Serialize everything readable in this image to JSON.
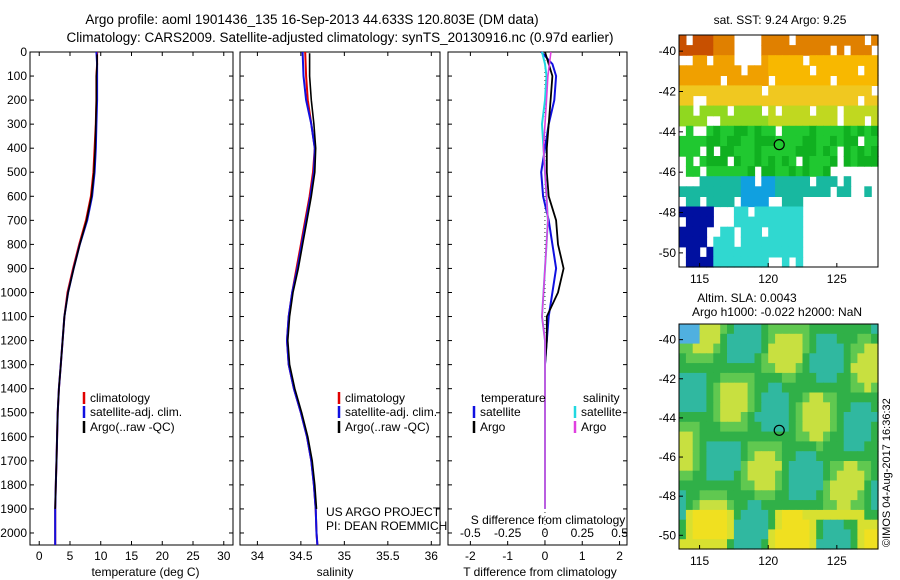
{
  "header": {
    "title_line1": "Argo profile: aoml 1901436_135 16-Sep-2013 44.633S 120.803E (DM data)",
    "title_line2": "Climatology: CARS2009. Satellite-adjusted climatology: synTS_20130916.nc (0.97d earlier)"
  },
  "credits": {
    "project": "US ARGO PROJECT",
    "pi": "PI: DEAN ROEMMICH",
    "stamp": "©IMOS 04-Aug-2017 16:36:32"
  },
  "colors": {
    "climatology": "#e00000",
    "satellite": "#1010e0",
    "argo": "#000000",
    "salinity_satellite": "#20d8e0",
    "salinity_argo": "#e040e0"
  },
  "chart_data": [
    {
      "type": "line",
      "title": "",
      "xlabel": "temperature (deg C)",
      "ylabel": "",
      "xlim": [
        -1.5,
        31.5
      ],
      "ylim": [
        2050,
        0
      ],
      "xticks": [
        "0",
        "5",
        "10",
        "15",
        "20",
        "25",
        "30"
      ],
      "yticks": [
        "0",
        "100",
        "200",
        "300",
        "400",
        "500",
        "600",
        "700",
        "800",
        "900",
        "1000",
        "1100",
        "1200",
        "1300",
        "1400",
        "1500",
        "1600",
        "1700",
        "1800",
        "1900",
        "2000"
      ],
      "legend": [
        "climatology",
        "satellite-adj. clim.",
        "Argo(..raw -QC)"
      ],
      "series": [
        {
          "name": "climatology",
          "x": [
            9.4,
            9.4,
            9.3,
            9.3,
            9.2,
            9.0,
            8.8,
            8.4,
            7.6,
            6.5,
            5.5,
            4.6,
            4.1,
            3.8,
            3.5,
            3.2,
            3.0,
            2.9,
            2.8,
            2.7,
            2.6,
            2.6
          ],
          "y": [
            0,
            50,
            100,
            200,
            300,
            400,
            500,
            600,
            700,
            800,
            900,
            1000,
            1100,
            1200,
            1300,
            1400,
            1500,
            1600,
            1700,
            1800,
            1900,
            2050
          ]
        },
        {
          "name": "satellite-adj. clim.",
          "x": [
            9.3,
            9.4,
            9.4,
            9.4,
            9.3,
            9.2,
            9.0,
            8.6,
            7.8,
            6.6,
            5.6,
            4.7,
            4.1,
            3.8,
            3.5,
            3.2,
            3.0,
            2.9,
            2.8,
            2.7,
            2.6,
            2.6
          ],
          "y": [
            0,
            50,
            100,
            200,
            300,
            400,
            500,
            600,
            700,
            800,
            900,
            1000,
            1100,
            1200,
            1300,
            1400,
            1500,
            1600,
            1700,
            1800,
            1900,
            2050
          ]
        },
        {
          "name": "Argo(..raw -QC)",
          "x": [
            9.4,
            9.4,
            9.3,
            9.3,
            9.2,
            9.1,
            8.9,
            8.5,
            7.7,
            6.6,
            5.6,
            4.7,
            4.1,
            3.8,
            3.5,
            3.2,
            3.0,
            2.9,
            2.8,
            2.7,
            2.6
          ],
          "y": [
            10,
            50,
            100,
            200,
            300,
            400,
            500,
            600,
            700,
            800,
            900,
            1000,
            1100,
            1200,
            1300,
            1400,
            1500,
            1600,
            1700,
            1800,
            1900
          ]
        }
      ]
    },
    {
      "type": "line",
      "xlabel": "salinity",
      "xlim": [
        33.8,
        36.1
      ],
      "ylim": [
        2050,
        0
      ],
      "xticks": [
        "34",
        "34.5",
        "35",
        "35.5",
        "36"
      ],
      "legend": [
        "climatology",
        "satellite-adj. clim.",
        "Argo(..raw -QC)"
      ],
      "series": [
        {
          "name": "climatology",
          "x": [
            34.55,
            34.56,
            34.58,
            34.62,
            34.66,
            34.64,
            34.6,
            34.55,
            34.5,
            34.45,
            34.4,
            34.36,
            34.34,
            34.36,
            34.42,
            34.5,
            34.57,
            34.62,
            34.65,
            34.67,
            34.68,
            34.69
          ],
          "y": [
            0,
            100,
            200,
            300,
            400,
            500,
            600,
            700,
            800,
            900,
            1000,
            1100,
            1200,
            1300,
            1400,
            1500,
            1600,
            1700,
            1800,
            1900,
            2000,
            2050
          ]
        },
        {
          "name": "satellite-adj. clim.",
          "x": [
            34.52,
            34.53,
            34.56,
            34.62,
            34.66,
            34.65,
            34.61,
            34.56,
            34.51,
            34.46,
            34.4,
            34.36,
            34.34,
            34.36,
            34.42,
            34.5,
            34.57,
            34.62,
            34.65,
            34.67,
            34.68,
            34.69
          ],
          "y": [
            0,
            100,
            200,
            300,
            400,
            500,
            600,
            700,
            800,
            900,
            1000,
            1100,
            1200,
            1300,
            1400,
            1500,
            1600,
            1700,
            1800,
            1900,
            2000,
            2050
          ]
        },
        {
          "name": "Argo(..raw -QC)",
          "x": [
            34.6,
            34.6,
            34.62,
            34.65,
            34.67,
            34.66,
            34.62,
            34.57,
            34.52,
            34.47,
            34.41,
            34.37,
            34.35,
            34.37,
            34.43,
            34.51,
            34.58,
            34.63,
            34.66,
            34.68
          ],
          "y": [
            5,
            100,
            200,
            300,
            400,
            500,
            600,
            700,
            800,
            900,
            1000,
            1100,
            1200,
            1300,
            1400,
            1500,
            1600,
            1700,
            1800,
            1900
          ]
        }
      ]
    },
    {
      "type": "line",
      "xlabel": "T difference from climatology",
      "xlabel2": "S difference from climatology",
      "xlim": [
        -2.6,
        2.2
      ],
      "ylim": [
        2050,
        0
      ],
      "xticks": [
        "-2",
        "-1",
        "0",
        "1",
        "2"
      ],
      "xticks2": [
        "-0.5",
        "-0.25",
        "0",
        "0.25",
        "0.5"
      ],
      "xticks2_values": [
        -0.5,
        -0.25,
        0,
        0.25,
        0.5
      ],
      "legend_temperature": {
        "heading": "temperature",
        "entries": [
          "satellite",
          "Argo"
        ]
      },
      "legend_salinity": {
        "heading": "salinity",
        "entries": [
          "satellite",
          "Argo"
        ]
      },
      "series": [
        {
          "name": "temperature satellite",
          "x": [
            -0.1,
            0.2,
            0.3,
            0.25,
            0.1,
            0.0,
            -0.1,
            -0.05,
            0.1,
            0.2,
            0.3,
            0.2,
            0.1,
            0.05,
            0.0,
            0.0,
            0.0,
            0.0,
            0.0,
            0.0
          ],
          "y": [
            0,
            50,
            100,
            200,
            300,
            400,
            500,
            600,
            700,
            800,
            900,
            1000,
            1100,
            1200,
            1300,
            1400,
            1500,
            1600,
            1700,
            1800
          ]
        },
        {
          "name": "temperature Argo",
          "x": [
            0.0,
            0.1,
            0.2,
            0.15,
            0.1,
            0.05,
            0.05,
            0.1,
            0.3,
            0.35,
            0.5,
            0.35,
            0.05,
            0.05,
            0.0,
            0.0,
            0.0,
            0.0,
            0.0,
            0.0
          ],
          "y": [
            0,
            50,
            100,
            200,
            300,
            400,
            500,
            600,
            700,
            800,
            900,
            1000,
            1100,
            1200,
            1300,
            1400,
            1500,
            1600,
            1700,
            1800
          ]
        },
        {
          "name": "salinity satellite",
          "x": [
            -0.02,
            0.0,
            0.01,
            0.0,
            -0.02,
            -0.01,
            0.0,
            0.01,
            0.02,
            0.01,
            0.0,
            -0.01,
            -0.02,
            0.0,
            0.0,
            0.0,
            0.0,
            0.0,
            0.0,
            0.0
          ],
          "y": [
            0,
            50,
            100,
            200,
            300,
            400,
            500,
            600,
            700,
            800,
            900,
            1000,
            1100,
            1200,
            1300,
            1400,
            1500,
            1600,
            1700,
            1900
          ]
        },
        {
          "name": "salinity Argo",
          "x": [
            0.04,
            0.03,
            0.02,
            0.01,
            0.0,
            -0.01,
            0.0,
            0.01,
            0.02,
            0.01,
            0.0,
            -0.01,
            -0.02,
            0.0,
            0.0,
            0.0,
            0.0,
            0.0,
            0.0,
            0.0
          ],
          "y": [
            0,
            50,
            100,
            200,
            300,
            400,
            500,
            600,
            700,
            800,
            900,
            1000,
            1100,
            1200,
            1300,
            1400,
            1500,
            1600,
            1700,
            1900
          ]
        }
      ]
    },
    {
      "type": "heatmap",
      "title": "sat. SST: 9.24 Argo: 9.25",
      "xlim": [
        113.5,
        128
      ],
      "ylim": [
        -50.7,
        -39.2
      ],
      "xticks": [
        "115",
        "120",
        "125"
      ],
      "yticks": [
        "-40",
        "-42",
        "-44",
        "-46",
        "-48",
        "-50"
      ],
      "marker": {
        "lon": 120.803,
        "lat": -44.633
      }
    },
    {
      "type": "heatmap",
      "title": "Altim. SLA: 0.0043",
      "subtitle": "Argo h1000: -0.022 h2000: NaN",
      "xlim": [
        113.5,
        128
      ],
      "ylim": [
        -50.7,
        -39.2
      ],
      "xticks": [
        "115",
        "120",
        "125"
      ],
      "yticks": [
        "-40",
        "-42",
        "-44",
        "-46",
        "-48",
        "-50"
      ],
      "marker": {
        "lon": 120.803,
        "lat": -44.633
      }
    }
  ]
}
